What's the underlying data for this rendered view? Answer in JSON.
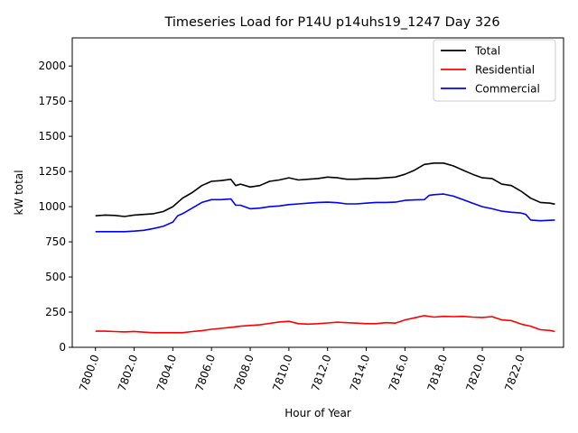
{
  "chart_data": {
    "type": "line",
    "title": "Timeseries Load for P14U p14uhs19_1247  Day 326",
    "xlabel": "Hour of Year",
    "ylabel": "kW total",
    "xlim": [
      7798.8,
      7824.2
    ],
    "ylim": [
      0,
      2200
    ],
    "xticks": [
      7800,
      7802,
      7804,
      7806,
      7808,
      7810,
      7812,
      7814,
      7816,
      7818,
      7820,
      7822
    ],
    "xtick_labels": [
      "7800.0",
      "7802.0",
      "7804.0",
      "7806.0",
      "7808.0",
      "7810.0",
      "7812.0",
      "7814.0",
      "7816.0",
      "7818.0",
      "7820.0",
      "7822.0"
    ],
    "yticks": [
      0,
      250,
      500,
      750,
      1000,
      1250,
      1500,
      1750,
      2000
    ],
    "ytick_labels": [
      "0",
      "250",
      "500",
      "750",
      "1000",
      "1250",
      "1500",
      "1750",
      "2000"
    ],
    "legend_position": "top-right",
    "grid": false,
    "series": [
      {
        "name": "Total",
        "color": "#000000",
        "points": [
          [
            7800.0,
            935
          ],
          [
            7800.5,
            940
          ],
          [
            7801.0,
            938
          ],
          [
            7801.5,
            930
          ],
          [
            7802.0,
            940
          ],
          [
            7802.5,
            945
          ],
          [
            7803.0,
            950
          ],
          [
            7803.5,
            965
          ],
          [
            7804.0,
            1000
          ],
          [
            7804.5,
            1060
          ],
          [
            7805.0,
            1100
          ],
          [
            7805.5,
            1150
          ],
          [
            7806.0,
            1180
          ],
          [
            7806.5,
            1185
          ],
          [
            7807.0,
            1195
          ],
          [
            7807.25,
            1150
          ],
          [
            7807.5,
            1160
          ],
          [
            7808.0,
            1140
          ],
          [
            7808.5,
            1150
          ],
          [
            7809.0,
            1180
          ],
          [
            7809.5,
            1190
          ],
          [
            7810.0,
            1205
          ],
          [
            7810.5,
            1190
          ],
          [
            7811.0,
            1195
          ],
          [
            7811.5,
            1200
          ],
          [
            7812.0,
            1210
          ],
          [
            7812.5,
            1205
          ],
          [
            7813.0,
            1195
          ],
          [
            7813.5,
            1195
          ],
          [
            7814.0,
            1200
          ],
          [
            7814.5,
            1200
          ],
          [
            7815.0,
            1205
          ],
          [
            7815.5,
            1210
          ],
          [
            7816.0,
            1230
          ],
          [
            7816.5,
            1260
          ],
          [
            7817.0,
            1300
          ],
          [
            7817.5,
            1310
          ],
          [
            7818.0,
            1310
          ],
          [
            7818.5,
            1290
          ],
          [
            7819.0,
            1260
          ],
          [
            7819.5,
            1230
          ],
          [
            7820.0,
            1205
          ],
          [
            7820.5,
            1200
          ],
          [
            7821.0,
            1160
          ],
          [
            7821.5,
            1150
          ],
          [
            7822.0,
            1110
          ],
          [
            7822.5,
            1060
          ],
          [
            7823.0,
            1030
          ],
          [
            7823.5,
            1025
          ],
          [
            7823.75,
            1018
          ]
        ]
      },
      {
        "name": "Residential",
        "color": "#ff0000",
        "points": [
          [
            7800.0,
            115
          ],
          [
            7800.5,
            115
          ],
          [
            7801.0,
            112
          ],
          [
            7801.5,
            110
          ],
          [
            7802.0,
            113
          ],
          [
            7802.5,
            108
          ],
          [
            7803.0,
            104
          ],
          [
            7803.5,
            104
          ],
          [
            7804.0,
            104
          ],
          [
            7804.5,
            104
          ],
          [
            7805.0,
            112
          ],
          [
            7805.5,
            118
          ],
          [
            7806.0,
            128
          ],
          [
            7806.5,
            135
          ],
          [
            7807.0,
            142
          ],
          [
            7807.5,
            150
          ],
          [
            7808.0,
            155
          ],
          [
            7808.5,
            160
          ],
          [
            7809.0,
            170
          ],
          [
            7809.5,
            180
          ],
          [
            7810.0,
            185
          ],
          [
            7810.5,
            168
          ],
          [
            7811.0,
            165
          ],
          [
            7811.5,
            168
          ],
          [
            7812.0,
            173
          ],
          [
            7812.5,
            178
          ],
          [
            7813.0,
            175
          ],
          [
            7813.5,
            172
          ],
          [
            7814.0,
            168
          ],
          [
            7814.5,
            168
          ],
          [
            7815.0,
            175
          ],
          [
            7815.5,
            172
          ],
          [
            7816.0,
            195
          ],
          [
            7816.5,
            210
          ],
          [
            7817.0,
            225
          ],
          [
            7817.5,
            215
          ],
          [
            7818.0,
            220
          ],
          [
            7818.5,
            218
          ],
          [
            7819.0,
            220
          ],
          [
            7819.5,
            215
          ],
          [
            7820.0,
            212
          ],
          [
            7820.5,
            218
          ],
          [
            7821.0,
            195
          ],
          [
            7821.5,
            190
          ],
          [
            7822.0,
            165
          ],
          [
            7822.5,
            150
          ],
          [
            7823.0,
            125
          ],
          [
            7823.5,
            120
          ],
          [
            7823.75,
            112
          ]
        ]
      },
      {
        "name": "Commercial",
        "color": "#0000ff",
        "points": [
          [
            7800.0,
            822
          ],
          [
            7800.5,
            822
          ],
          [
            7801.0,
            822
          ],
          [
            7801.5,
            822
          ],
          [
            7802.0,
            826
          ],
          [
            7802.5,
            832
          ],
          [
            7803.0,
            845
          ],
          [
            7803.5,
            860
          ],
          [
            7804.0,
            890
          ],
          [
            7804.25,
            935
          ],
          [
            7804.5,
            950
          ],
          [
            7805.0,
            990
          ],
          [
            7805.5,
            1030
          ],
          [
            7806.0,
            1050
          ],
          [
            7806.5,
            1050
          ],
          [
            7807.0,
            1055
          ],
          [
            7807.25,
            1010
          ],
          [
            7807.5,
            1010
          ],
          [
            7808.0,
            985
          ],
          [
            7808.5,
            990
          ],
          [
            7809.0,
            1000
          ],
          [
            7809.5,
            1005
          ],
          [
            7810.0,
            1015
          ],
          [
            7810.5,
            1020
          ],
          [
            7811.0,
            1025
          ],
          [
            7811.5,
            1030
          ],
          [
            7812.0,
            1032
          ],
          [
            7812.5,
            1028
          ],
          [
            7813.0,
            1020
          ],
          [
            7813.5,
            1020
          ],
          [
            7814.0,
            1025
          ],
          [
            7814.5,
            1030
          ],
          [
            7815.0,
            1030
          ],
          [
            7815.5,
            1032
          ],
          [
            7816.0,
            1045
          ],
          [
            7816.5,
            1048
          ],
          [
            7817.0,
            1050
          ],
          [
            7817.25,
            1080
          ],
          [
            7817.5,
            1085
          ],
          [
            7818.0,
            1090
          ],
          [
            7818.5,
            1075
          ],
          [
            7819.0,
            1050
          ],
          [
            7819.5,
            1025
          ],
          [
            7820.0,
            1000
          ],
          [
            7820.5,
            985
          ],
          [
            7821.0,
            968
          ],
          [
            7821.5,
            960
          ],
          [
            7822.0,
            955
          ],
          [
            7822.25,
            945
          ],
          [
            7822.5,
            905
          ],
          [
            7823.0,
            900
          ],
          [
            7823.5,
            903
          ],
          [
            7823.75,
            905
          ]
        ]
      }
    ]
  }
}
